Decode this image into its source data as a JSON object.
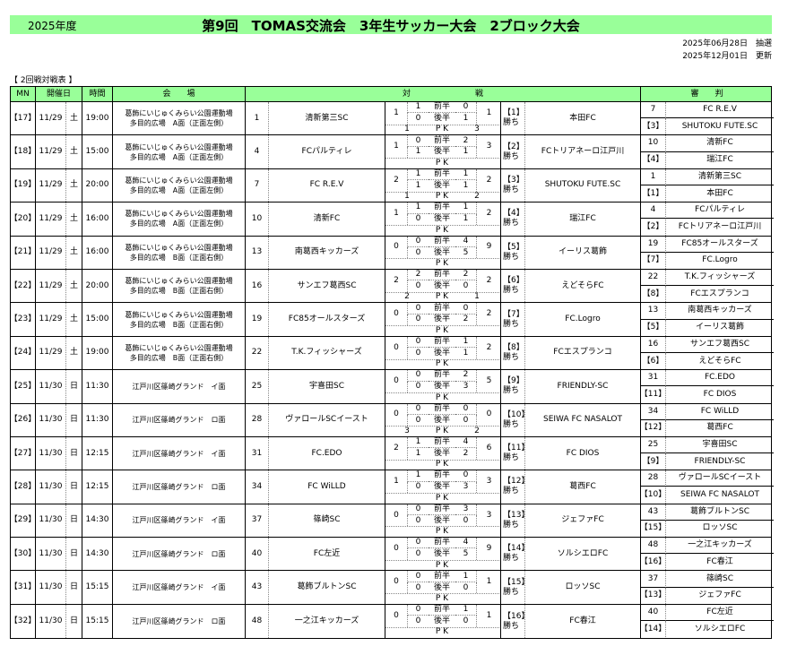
{
  "header": {
    "year": "2025年度",
    "title": "第9回　TOMAS交流会　3年生サッカー大会　2ブロック大会",
    "draw_date": "2025年06月28日　抽選",
    "updated": "2025年12月01日　更新",
    "section": "【 2回戦対戦表 】"
  },
  "columns": {
    "mn": "MN",
    "date": "開催日",
    "time": "時間",
    "venue": "会　　場",
    "match": "対　　　　　　　　戦",
    "referee": "審　　判"
  },
  "colors": {
    "green": "#99ff99"
  },
  "pk_label": "P K",
  "first_half": "前半",
  "second_half": "後半",
  "matches": [
    {
      "mn": "【17】",
      "date": "11/29",
      "dow": "土",
      "time": "19:00",
      "venue1": "葛飾にいじゅくみらい公園運動場",
      "venue2": "多目的広場　A面（正面左側）",
      "num": "1",
      "team": "清新第三SC",
      "lt": "1",
      "l1": "1",
      "r1": "0",
      "l2": "0",
      "r2": "1",
      "rt": "1",
      "pkl": "1",
      "pkr": "3",
      "wl": "【1】",
      "win": "勝ち",
      "winner": "本田FC",
      "ref1n": "7",
      "ref1": "FC R.E.V",
      "ref2n": "【3】",
      "ref2": "SHUTOKU FUTE.SC"
    },
    {
      "mn": "【18】",
      "date": "11/29",
      "dow": "土",
      "time": "15:00",
      "venue1": "葛飾にいじゅくみらい公園運動場",
      "venue2": "多目的広場　A面（正面左側）",
      "num": "4",
      "team": "FCパルティレ",
      "lt": "1",
      "l1": "0",
      "r1": "2",
      "l2": "1",
      "r2": "1",
      "rt": "3",
      "pkl": "",
      "pkr": "",
      "wl": "【2】",
      "win": "勝ち",
      "winner": "FCトリアネーロ江戸川",
      "ref1n": "10",
      "ref1": "清新FC",
      "ref2n": "【4】",
      "ref2": "瑞江FC"
    },
    {
      "mn": "【19】",
      "date": "11/29",
      "dow": "土",
      "time": "20:00",
      "venue1": "葛飾にいじゅくみらい公園運動場",
      "venue2": "多目的広場　A面（正面左側）",
      "num": "7",
      "team": "FC R.E.V",
      "lt": "2",
      "l1": "1",
      "r1": "1",
      "l2": "1",
      "r2": "1",
      "rt": "2",
      "pkl": "1",
      "pkr": "2",
      "wl": "【3】",
      "win": "勝ち",
      "winner": "SHUTOKU FUTE.SC",
      "ref1n": "1",
      "ref1": "清新第三SC",
      "ref2n": "【1】",
      "ref2": "本田FC"
    },
    {
      "mn": "【20】",
      "date": "11/29",
      "dow": "土",
      "time": "16:00",
      "venue1": "葛飾にいじゅくみらい公園運動場",
      "venue2": "多目的広場　A面（正面左側）",
      "num": "10",
      "team": "清新FC",
      "lt": "1",
      "l1": "1",
      "r1": "1",
      "l2": "0",
      "r2": "1",
      "rt": "2",
      "pkl": "",
      "pkr": "",
      "wl": "【4】",
      "win": "勝ち",
      "winner": "瑞江FC",
      "ref1n": "4",
      "ref1": "FCパルティレ",
      "ref2n": "【2】",
      "ref2": "FCトリアネーロ江戸川"
    },
    {
      "mn": "【21】",
      "date": "11/29",
      "dow": "土",
      "time": "16:00",
      "venue1": "葛飾にいじゅくみらい公園運動場",
      "venue2": "多目的広場　B面（正面右側）",
      "num": "13",
      "team": "南葛西キッカーズ",
      "lt": "0",
      "l1": "0",
      "r1": "4",
      "l2": "0",
      "r2": "5",
      "rt": "9",
      "pkl": "",
      "pkr": "",
      "wl": "【5】",
      "win": "勝ち",
      "winner": "イーリス葛飾",
      "ref1n": "19",
      "ref1": "FC85オールスターズ",
      "ref2n": "【7】",
      "ref2": "FC.Logro"
    },
    {
      "mn": "【22】",
      "date": "11/29",
      "dow": "土",
      "time": "20:00",
      "venue1": "葛飾にいじゅくみらい公園運動場",
      "venue2": "多目的広場　B面（正面右側）",
      "num": "16",
      "team": "サンエフ葛西SC",
      "lt": "2",
      "l1": "2",
      "r1": "2",
      "l2": "0",
      "r2": "0",
      "rt": "2",
      "pkl": "2",
      "pkr": "1",
      "wl": "【6】",
      "win": "勝ち",
      "winner": "えどそらFC",
      "ref1n": "22",
      "ref1": "T.K.フィッシャーズ",
      "ref2n": "【8】",
      "ref2": "FCエスプランコ"
    },
    {
      "mn": "【23】",
      "date": "11/29",
      "dow": "土",
      "time": "15:00",
      "venue1": "葛飾にいじゅくみらい公園運動場",
      "venue2": "多目的広場　B面（正面右側）",
      "num": "19",
      "team": "FC85オールスターズ",
      "lt": "0",
      "l1": "0",
      "r1": "0",
      "l2": "0",
      "r2": "2",
      "rt": "2",
      "pkl": "",
      "pkr": "",
      "wl": "【7】",
      "win": "勝ち",
      "winner": "FC.Logro",
      "ref1n": "13",
      "ref1": "南葛西キッカーズ",
      "ref2n": "【5】",
      "ref2": "イーリス葛飾"
    },
    {
      "mn": "【24】",
      "date": "11/29",
      "dow": "土",
      "time": "19:00",
      "venue1": "葛飾にいじゅくみらい公園運動場",
      "venue2": "多目的広場　B面（正面右側）",
      "num": "22",
      "team": "T.K.フィッシャーズ",
      "lt": "0",
      "l1": "0",
      "r1": "1",
      "l2": "0",
      "r2": "1",
      "rt": "2",
      "pkl": "",
      "pkr": "",
      "wl": "【8】",
      "win": "勝ち",
      "winner": "FCエスプランコ",
      "ref1n": "16",
      "ref1": "サンエフ葛西SC",
      "ref2n": "【6】",
      "ref2": "えどそらFC"
    },
    {
      "mn": "【25】",
      "date": "11/30",
      "dow": "日",
      "time": "11:30",
      "venue1": "江戸川区篠崎グランド　イ面",
      "venue2": "",
      "num": "25",
      "team": "宇喜田SC",
      "lt": "0",
      "l1": "0",
      "r1": "2",
      "l2": "0",
      "r2": "3",
      "rt": "5",
      "pkl": "",
      "pkr": "",
      "wl": "【9】",
      "win": "勝ち",
      "winner": "FRIENDLY-SC",
      "ref1n": "31",
      "ref1": "FC.EDO",
      "ref2n": "【11】",
      "ref2": "FC DIOS"
    },
    {
      "mn": "【26】",
      "date": "11/30",
      "dow": "日",
      "time": "11:30",
      "venue1": "江戸川区篠崎グランド　ロ面",
      "venue2": "",
      "num": "28",
      "team": "ヴァロールSCイースト",
      "lt": "0",
      "l1": "0",
      "r1": "0",
      "l2": "0",
      "r2": "0",
      "rt": "0",
      "pkl": "3",
      "pkr": "2",
      "wl": "【10】",
      "win": "勝ち",
      "winner": "SEIWA FC NASALOT",
      "ref1n": "34",
      "ref1": "FC WiLLD",
      "ref2n": "【12】",
      "ref2": "葛西FC"
    },
    {
      "mn": "【27】",
      "date": "11/30",
      "dow": "日",
      "time": "12:15",
      "venue1": "江戸川区篠崎グランド　イ面",
      "venue2": "",
      "num": "31",
      "team": "FC.EDO",
      "lt": "2",
      "l1": "1",
      "r1": "4",
      "l2": "1",
      "r2": "2",
      "rt": "6",
      "pkl": "",
      "pkr": "",
      "wl": "【11】",
      "win": "勝ち",
      "winner": "FC DIOS",
      "ref1n": "25",
      "ref1": "宇喜田SC",
      "ref2n": "【9】",
      "ref2": "FRIENDLY-SC"
    },
    {
      "mn": "【28】",
      "date": "11/30",
      "dow": "日",
      "time": "12:15",
      "venue1": "江戸川区篠崎グランド　ロ面",
      "venue2": "",
      "num": "34",
      "team": "FC WiLLD",
      "lt": "1",
      "l1": "1",
      "r1": "0",
      "l2": "0",
      "r2": "3",
      "rt": "3",
      "pkl": "",
      "pkr": "",
      "wl": "【12】",
      "win": "勝ち",
      "winner": "葛西FC",
      "ref1n": "28",
      "ref1": "ヴァロールSCイースト",
      "ref2n": "【10】",
      "ref2": "SEIWA FC NASALOT"
    },
    {
      "mn": "【29】",
      "date": "11/30",
      "dow": "日",
      "time": "14:30",
      "venue1": "江戸川区篠崎グランド　イ面",
      "venue2": "",
      "num": "37",
      "team": "篠崎SC",
      "lt": "0",
      "l1": "0",
      "r1": "3",
      "l2": "0",
      "r2": "0",
      "rt": "3",
      "pkl": "",
      "pkr": "",
      "wl": "【13】",
      "win": "勝ち",
      "winner": "ジェファFC",
      "ref1n": "43",
      "ref1": "葛飾ブルトンSC",
      "ref2n": "【15】",
      "ref2": "ロッソSC"
    },
    {
      "mn": "【30】",
      "date": "11/30",
      "dow": "日",
      "time": "14:30",
      "venue1": "江戸川区篠崎グランド　ロ面",
      "venue2": "",
      "num": "40",
      "team": "FC左近",
      "lt": "0",
      "l1": "0",
      "r1": "4",
      "l2": "0",
      "r2": "5",
      "rt": "9",
      "pkl": "",
      "pkr": "",
      "wl": "【14】",
      "win": "勝ち",
      "winner": "ソルシエロFC",
      "ref1n": "48",
      "ref1": "一之江キッカーズ",
      "ref2n": "【16】",
      "ref2": "FC春江"
    },
    {
      "mn": "【31】",
      "date": "11/30",
      "dow": "日",
      "time": "15:15",
      "venue1": "江戸川区篠崎グランド　イ面",
      "venue2": "",
      "num": "43",
      "team": "葛飾ブルトンSC",
      "lt": "0",
      "l1": "0",
      "r1": "1",
      "l2": "0",
      "r2": "0",
      "rt": "1",
      "pkl": "",
      "pkr": "",
      "wl": "【15】",
      "win": "勝ち",
      "winner": "ロッソSC",
      "ref1n": "37",
      "ref1": "篠崎SC",
      "ref2n": "【13】",
      "ref2": "ジェファFC"
    },
    {
      "mn": "【32】",
      "date": "11/30",
      "dow": "日",
      "time": "15:15",
      "venue1": "江戸川区篠崎グランド　ロ面",
      "venue2": "",
      "num": "48",
      "team": "一之江キッカーズ",
      "lt": "0",
      "l1": "0",
      "r1": "1",
      "l2": "0",
      "r2": "0",
      "rt": "1",
      "pkl": "",
      "pkr": "",
      "wl": "【16】",
      "win": "勝ち",
      "winner": "FC春江",
      "ref1n": "40",
      "ref1": "FC左近",
      "ref2n": "【14】",
      "ref2": "ソルシエロFC"
    }
  ]
}
